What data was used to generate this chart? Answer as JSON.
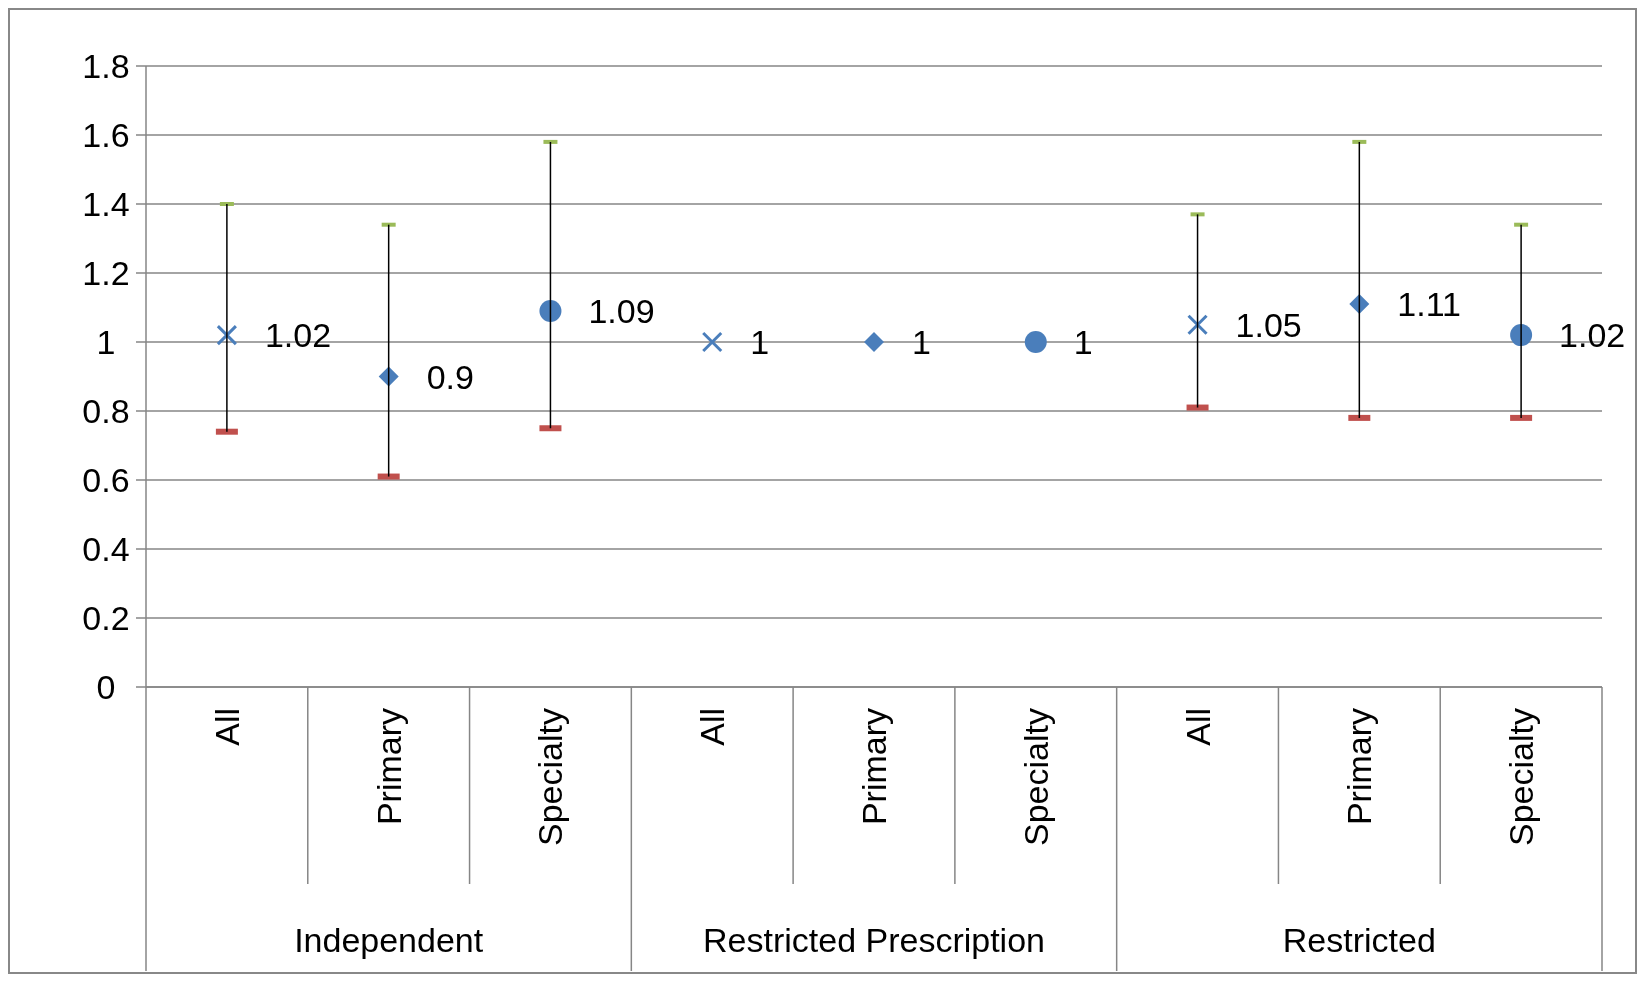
{
  "chart_data": {
    "type": "scatter",
    "categories": [
      "All",
      "Primary",
      "Specialty",
      "All",
      "Primary",
      "Specialty",
      "All",
      "Primary",
      "Specialty"
    ],
    "series": [
      {
        "color": "#4a7ebb",
        "marker": "cross",
        "values": [
          1.02,
          null,
          null,
          1,
          null,
          null,
          1.05,
          null,
          null
        ],
        "errors": [
          [
            0.74,
            1.4
          ],
          null,
          null,
          null,
          null,
          null,
          [
            0.81,
            1.37
          ],
          null,
          null
        ]
      },
      {
        "color": "#4a7ebb",
        "marker": "diamond",
        "values": [
          null,
          0.9,
          null,
          null,
          1,
          null,
          null,
          1.11,
          null
        ],
        "errors": [
          null,
          [
            0.61,
            1.34
          ],
          null,
          null,
          null,
          null,
          null,
          [
            0.78,
            1.58
          ],
          null
        ]
      },
      {
        "color": "#4a7ebb",
        "marker": "circle",
        "values": [
          null,
          null,
          1.09,
          null,
          null,
          1,
          null,
          null,
          1.02
        ],
        "errors": [
          null,
          null,
          [
            0.75,
            1.58
          ],
          null,
          null,
          null,
          null,
          null,
          [
            0.78,
            1.34
          ]
        ]
      }
    ],
    "annotations": [
      "Independent",
      "Restricted Prescription",
      "Restricted"
    ],
    "ylim": [
      0,
      1.8
    ],
    "yticks": [
      0,
      0.2,
      0.4,
      0.6,
      0.8,
      1,
      1.2,
      1.4,
      1.6,
      1.8
    ],
    "grid": "y",
    "data_labels": true
  }
}
